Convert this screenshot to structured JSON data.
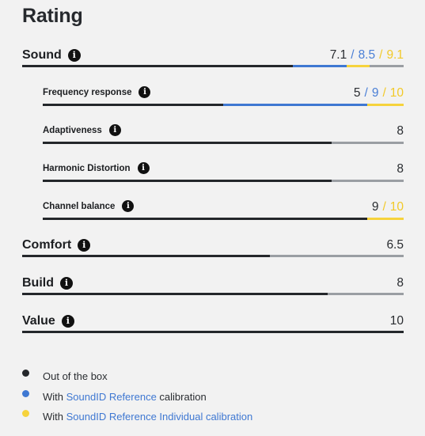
{
  "title": "Rating",
  "colors": {
    "out_of_box": "#24272b",
    "reference": "#3f78d2",
    "individual": "#f6d33c",
    "track": "#9a9ea3"
  },
  "rows": [
    {
      "id": "sound",
      "kind": "main",
      "label": "Sound",
      "icon": "info-icon",
      "scores": [
        "7.1",
        "8.5",
        "9.1"
      ],
      "values": [
        7.1,
        8.5,
        9.1
      ]
    },
    {
      "id": "frequency-response",
      "kind": "sub",
      "label": "Frequency response",
      "icon": "info-icon",
      "scores": [
        "5",
        "9",
        "10"
      ],
      "values": [
        5,
        9,
        10
      ]
    },
    {
      "id": "adaptiveness",
      "kind": "sub",
      "label": "Adaptiveness",
      "icon": "info-icon",
      "scores": [
        "8"
      ],
      "values": [
        8
      ]
    },
    {
      "id": "harmonic-distortion",
      "kind": "sub",
      "label": "Harmonic Distortion",
      "icon": "info-icon",
      "scores": [
        "8"
      ],
      "values": [
        8
      ]
    },
    {
      "id": "channel-balance",
      "kind": "sub",
      "label": "Channel balance",
      "icon": "info-icon",
      "scores": [
        "9",
        "10"
      ],
      "values": [
        9,
        10
      ],
      "score_colors": [
        "dark",
        "yellow"
      ]
    },
    {
      "id": "comfort",
      "kind": "main",
      "label": "Comfort",
      "icon": "info-icon",
      "scores": [
        "6.5"
      ],
      "values": [
        6.5
      ]
    },
    {
      "id": "build",
      "kind": "main",
      "label": "Build",
      "icon": "info-icon",
      "scores": [
        "8"
      ],
      "values": [
        8
      ]
    },
    {
      "id": "value",
      "kind": "main",
      "label": "Value",
      "icon": "info-icon",
      "scores": [
        "10"
      ],
      "values": [
        10
      ]
    }
  ],
  "max_score": 10,
  "legend": [
    {
      "id": "out-of-box",
      "color": "#24272b",
      "prefix": "Out of the box",
      "link": "",
      "suffix": ""
    },
    {
      "id": "reference",
      "color": "#3f78d2",
      "prefix": "With ",
      "link": "SoundID Reference",
      "suffix": " calibration"
    },
    {
      "id": "individual",
      "color": "#f6d33c",
      "prefix": "With ",
      "link": "SoundID Reference Individual calibration",
      "suffix": ""
    }
  ]
}
